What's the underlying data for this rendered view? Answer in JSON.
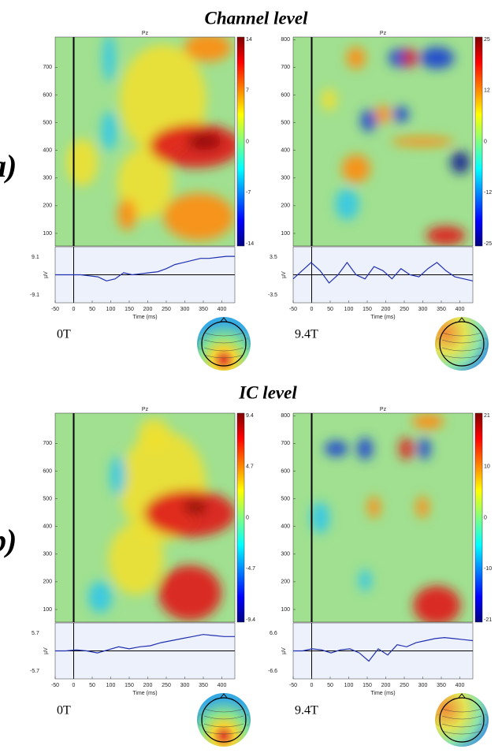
{
  "titles": [
    "Channel level",
    "IC level"
  ],
  "panel_labels": [
    "a)",
    "b)"
  ],
  "panels": [
    {
      "channel": "Pz",
      "condition": "0T",
      "y_ticks": [
        100,
        200,
        300,
        400,
        500,
        600,
        700
      ],
      "colorbar_ticks": [
        14,
        7,
        0,
        -7,
        -14
      ],
      "erp_ticks": [
        9.1,
        -9.1
      ],
      "erp_unit": "µV",
      "x_ticks": [
        -50,
        0,
        50,
        100,
        150,
        200,
        250,
        300,
        350,
        400
      ],
      "x_label": "Time (ms)"
    },
    {
      "channel": "Pz",
      "condition": "9.4T",
      "y_ticks": [
        100,
        200,
        300,
        400,
        500,
        600,
        700,
        800
      ],
      "colorbar_ticks": [
        25,
        12,
        0,
        -12,
        -25
      ],
      "erp_ticks": [
        3.5,
        -3.5
      ],
      "erp_unit": "µV",
      "x_ticks": [
        -50,
        0,
        50,
        100,
        150,
        200,
        250,
        300,
        350,
        400
      ],
      "x_label": "Time (ms)"
    },
    {
      "channel": "Pz",
      "condition": "0T",
      "y_ticks": [
        100,
        200,
        300,
        400,
        500,
        600,
        700
      ],
      "colorbar_ticks": [
        9.4,
        4.7,
        0,
        -4.7,
        -9.4
      ],
      "erp_ticks": [
        5.7,
        -5.7
      ],
      "erp_unit": "µV",
      "x_ticks": [
        -50,
        0,
        50,
        100,
        150,
        200,
        250,
        300,
        350,
        400
      ],
      "x_label": "Time (ms)"
    },
    {
      "channel": "Pz",
      "condition": "9.4T",
      "y_ticks": [
        100,
        200,
        300,
        400,
        500,
        600,
        700,
        800
      ],
      "colorbar_ticks": [
        21,
        10,
        0,
        -10,
        -21
      ],
      "erp_ticks": [
        6.6,
        -6.6
      ],
      "erp_unit": "µV",
      "x_ticks": [
        -50,
        0,
        50,
        100,
        150,
        200,
        250,
        300,
        350,
        400
      ],
      "x_label": "Time (ms)"
    }
  ]
}
